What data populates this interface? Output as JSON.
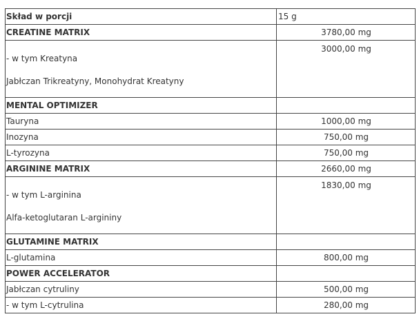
{
  "header": {
    "label": "Skład w porcji",
    "value": "15 g"
  },
  "rows": [
    {
      "name": "CREATINE MATRIX",
      "value": "3780,00 mg",
      "bold": true
    },
    {
      "name": "- w tym Kreatyna",
      "note": "Jabłczan Trikreatyny, Monohydrat Kreatyny",
      "value": "3000,00 mg"
    },
    {
      "name": "MENTAL OPTIMIZER",
      "value": "",
      "bold": true
    },
    {
      "name": "Tauryna",
      "value": "1000,00 mg"
    },
    {
      "name": "Inozyna",
      "value": "750,00 mg"
    },
    {
      "name": "L-tyrozyna",
      "value": "750,00 mg"
    },
    {
      "name": "ARGININE MATRIX",
      "value": "2660,00 mg",
      "bold": true
    },
    {
      "name": "- w tym L-arginina",
      "note": "Alfa-ketoglutaran L-argininy",
      "value": "1830,00 mg"
    },
    {
      "name": "GLUTAMINE MATRIX",
      "value": "",
      "bold": true
    },
    {
      "name": "L-glutamina",
      "value": "800,00 mg"
    },
    {
      "name": "POWER ACCELERATOR",
      "value": "",
      "bold": true
    },
    {
      "name": "Jabłczan cytruliny",
      "value": "500,00 mg"
    },
    {
      "name": "- w tym L-cytrulina",
      "value": "280,00 mg"
    }
  ]
}
